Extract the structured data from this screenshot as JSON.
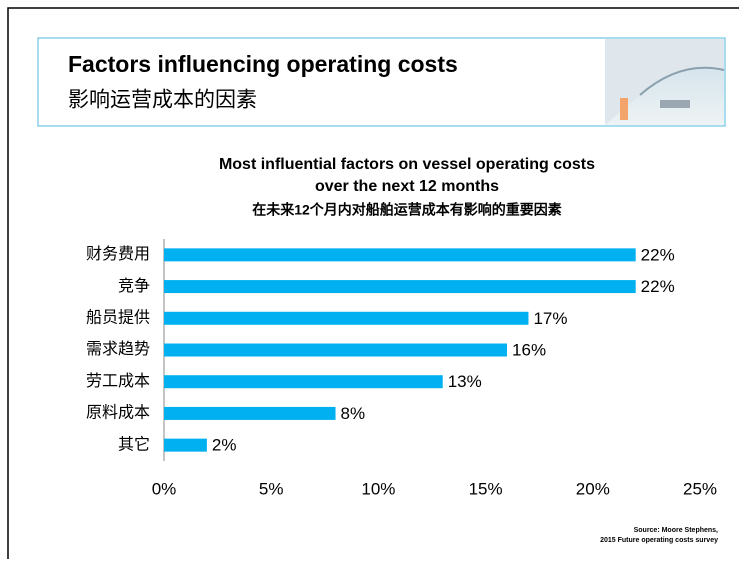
{
  "header": {
    "title": "Factors influencing operating costs",
    "subtitle": "影响运营成本的因素"
  },
  "chart_data": {
    "type": "bar",
    "orientation": "horizontal",
    "title": [
      "Most influential factors on vessel operating costs",
      "over the next 12 months"
    ],
    "subtitle": "在未来12个月内对船舶运营成本有影响的重要因素",
    "categories": [
      "财务费用",
      "竞争",
      "船员提供",
      "需求趋势",
      "劳工成本",
      "原料成本",
      "其它"
    ],
    "values": [
      22,
      22,
      17,
      16,
      13,
      8,
      2
    ],
    "value_labels": [
      "22%",
      "22%",
      "17%",
      "16%",
      "13%",
      "8%",
      "2%"
    ],
    "color": "#00b0f0",
    "xlim": [
      0,
      25
    ],
    "xticks": [
      {
        "value": 0,
        "label": "0%"
      },
      {
        "value": 5,
        "label": "5%"
      },
      {
        "value": 10,
        "label": "10%"
      },
      {
        "value": 15,
        "label": "15%"
      },
      {
        "value": 20,
        "label": "20%"
      },
      {
        "value": 25,
        "label": "25%"
      }
    ],
    "grid": false,
    "source": [
      "Source: Moore Stephens,",
      "2015 Future operating costs survey"
    ]
  }
}
